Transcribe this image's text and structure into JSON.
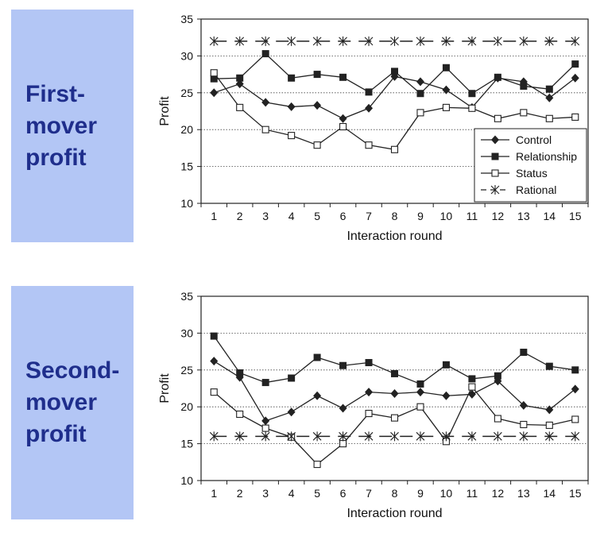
{
  "panels": [
    {
      "label": "First-\nmover\nprofit"
    },
    {
      "label": "Second-\nmover\nprofit"
    }
  ],
  "colors": {
    "panel_bg": "#b3c6f5",
    "panel_text": "#1f2e8c",
    "line": "#222222"
  },
  "chart_data": [
    {
      "type": "line",
      "xlabel": "Interaction round",
      "ylabel": "Profit",
      "ylim": [
        10,
        35
      ],
      "yticks": [
        10,
        15,
        20,
        25,
        30,
        35
      ],
      "x": [
        1,
        2,
        3,
        4,
        5,
        6,
        7,
        8,
        9,
        10,
        11,
        12,
        13,
        14,
        15
      ],
      "grid": "horizontal dotted",
      "legend": "bottom-right",
      "series": [
        {
          "name": "Control",
          "marker": "diamond",
          "values": [
            25.0,
            26.2,
            23.7,
            23.1,
            23.3,
            21.5,
            22.9,
            27.2,
            26.5,
            25.4,
            23.0,
            27.0,
            26.5,
            24.3,
            27.0
          ]
        },
        {
          "name": "Relationship",
          "marker": "square-filled",
          "values": [
            26.9,
            27.0,
            30.3,
            27.0,
            27.5,
            27.1,
            25.1,
            27.9,
            24.9,
            28.4,
            24.9,
            27.1,
            25.9,
            25.5,
            28.9
          ]
        },
        {
          "name": "Status",
          "marker": "square-open",
          "values": [
            27.7,
            23.0,
            20.0,
            19.2,
            17.9,
            20.4,
            17.9,
            17.3,
            22.3,
            23.0,
            22.9,
            21.5,
            22.3,
            21.5,
            21.7
          ]
        },
        {
          "name": "Rational",
          "marker": "star",
          "dashed": true,
          "values": [
            32,
            32,
            32,
            32,
            32,
            32,
            32,
            32,
            32,
            32,
            32,
            32,
            32,
            32,
            32
          ]
        }
      ]
    },
    {
      "type": "line",
      "xlabel": "Interaction round",
      "ylabel": "Profit",
      "ylim": [
        10,
        35
      ],
      "yticks": [
        10,
        15,
        20,
        25,
        30,
        35
      ],
      "x": [
        1,
        2,
        3,
        4,
        5,
        6,
        7,
        8,
        9,
        10,
        11,
        12,
        13,
        14,
        15
      ],
      "grid": "horizontal dotted",
      "series": [
        {
          "marker": "diamond",
          "values": [
            26.2,
            24.0,
            18.1,
            19.3,
            21.5,
            19.8,
            22.0,
            21.8,
            22.0,
            21.5,
            21.7,
            23.5,
            20.2,
            19.6,
            22.4
          ]
        },
        {
          "marker": "square-filled",
          "values": [
            29.6,
            24.6,
            23.3,
            23.9,
            26.7,
            25.6,
            26.0,
            24.5,
            23.1,
            25.7,
            23.8,
            24.2,
            27.4,
            25.5,
            25.0
          ]
        },
        {
          "marker": "square-open",
          "values": [
            22.0,
            19.0,
            17.1,
            15.9,
            12.2,
            15.0,
            19.1,
            18.5,
            20.0,
            15.3,
            22.7,
            18.4,
            17.6,
            17.5,
            18.3
          ]
        },
        {
          "marker": "star",
          "dashed": true,
          "values": [
            16,
            16,
            16,
            16,
            16,
            16,
            16,
            16,
            16,
            16,
            16,
            16,
            16,
            16,
            16
          ]
        }
      ]
    }
  ]
}
